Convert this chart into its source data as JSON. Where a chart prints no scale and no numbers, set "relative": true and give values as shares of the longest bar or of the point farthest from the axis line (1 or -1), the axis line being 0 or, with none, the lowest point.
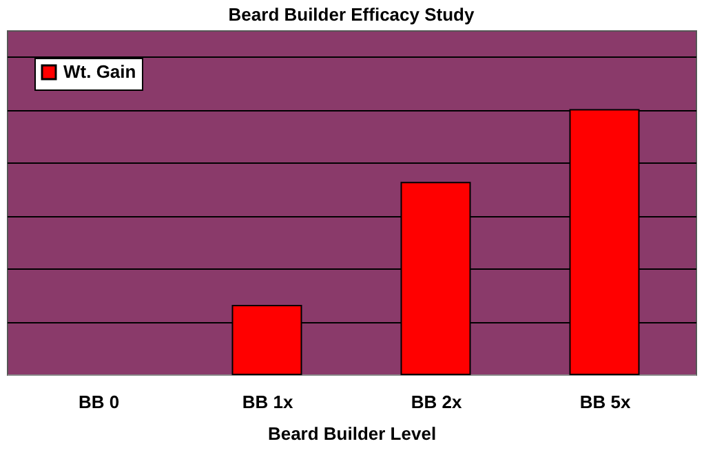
{
  "chart_data": {
    "type": "bar",
    "title": "Beard Builder Efficacy Study",
    "xlabel": "Beard Builder Level",
    "categories": [
      "BB 0",
      "BB 1x",
      "BB 2x",
      "BB 5x"
    ],
    "relative": true,
    "series": [
      {
        "name": "Wt. Gain",
        "color": "#ff0000",
        "values": [
          0,
          0.26,
          0.725,
          1
        ]
      }
    ],
    "grid": "y",
    "legend": "top left"
  }
}
